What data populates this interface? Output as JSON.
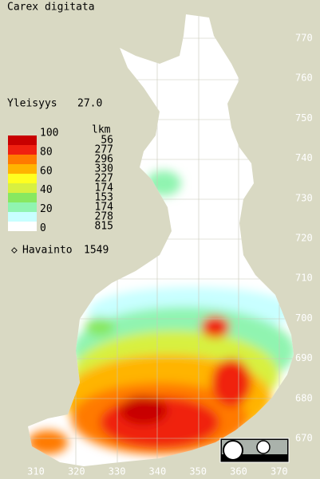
{
  "title": "Carex digitata",
  "frequency": {
    "label": "Yleisyys",
    "value": "27.0"
  },
  "legend": {
    "scale": [
      "100",
      "80",
      "60",
      "40",
      "20",
      "0"
    ],
    "count_header": "lkm",
    "items": [
      {
        "color": "#c80000",
        "count": 56
      },
      {
        "color": "#f02010",
        "count": 277
      },
      {
        "color": "#ff7a00",
        "count": 296
      },
      {
        "color": "#ffb400",
        "count": 330
      },
      {
        "color": "#ffff20",
        "count": 227
      },
      {
        "color": "#d8f040",
        "count": 174
      },
      {
        "color": "#88e860",
        "count": 153
      },
      {
        "color": "#90f4b0",
        "count": 174
      },
      {
        "color": "#c8ffff",
        "count": 278
      },
      {
        "color": "#ffffff",
        "count": 815
      }
    ]
  },
  "observations": {
    "label": "Havainto",
    "count": 1549
  },
  "north_ticks": [
    "770",
    "760",
    "750",
    "740",
    "730",
    "720",
    "710",
    "700",
    "690",
    "680",
    "670"
  ],
  "east_ticks": [
    "310",
    "320",
    "330",
    "340",
    "350",
    "360",
    "370"
  ]
}
